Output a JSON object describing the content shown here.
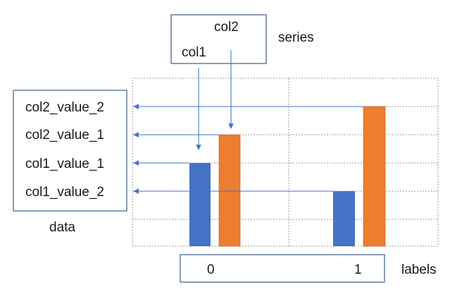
{
  "series": {
    "col1": "col1",
    "col2": "col2",
    "label": "series"
  },
  "data": {
    "label": "data",
    "items": [
      "col2_value_2",
      "col2_value_1",
      "col1_value_1",
      "col1_value_2"
    ]
  },
  "labels": {
    "label": "labels",
    "ticks": [
      "0",
      "1"
    ]
  },
  "colors": {
    "col1": "#4472c4",
    "col2": "#ed7d31",
    "box_border": "#3d5a8a",
    "arrow": "#4472c4",
    "grid": "#9a9a9a"
  }
}
